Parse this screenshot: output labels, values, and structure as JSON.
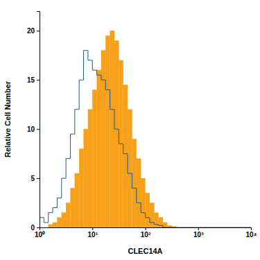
{
  "chart_data": {
    "type": "histogram",
    "x_label": "CLEC14A",
    "y_label": "Relative Cell Number",
    "log": "x",
    "bins": [
      1,
      1.212,
      1.468,
      1.778,
      2.154,
      2.61,
      3.162,
      3.831,
      4.642,
      5.623,
      6.813,
      8.254,
      10,
      12.12,
      14.68,
      17.78,
      21.54,
      26.1,
      31.62,
      38.31,
      46.42,
      56.23,
      68.13,
      82.54,
      100,
      121.2,
      146.8,
      177.8,
      215.4,
      261,
      316.2,
      383.1,
      464.2,
      562.3,
      681.3,
      825.4,
      1000,
      1212,
      1468,
      1778,
      2154,
      2610,
      3162,
      3831,
      4642,
      5623,
      6813,
      8254,
      10000
    ],
    "series": [
      {
        "type": "bar",
        "color": "#f7a11a",
        "values": [
          0,
          0,
          0.3,
          0.5,
          1,
          1.5,
          2.5,
          4,
          5.5,
          8,
          10,
          12,
          14,
          16,
          18,
          19.5,
          20,
          19,
          17,
          14.5,
          12,
          9,
          7,
          5,
          3.5,
          2.5,
          1.5,
          1,
          0.5,
          0.2,
          0.1,
          0,
          0,
          0,
          0,
          0,
          0,
          0,
          0,
          0,
          0,
          0,
          0,
          0,
          0,
          0,
          0,
          0
        ]
      },
      {
        "type": "step",
        "color": "#1d5a85",
        "values": [
          1,
          0.5,
          1.5,
          2,
          3,
          5,
          7,
          9.5,
          12,
          15,
          18,
          17,
          16,
          15.5,
          15,
          14,
          12,
          10,
          8.5,
          7.5,
          5.5,
          4,
          2.5,
          1.5,
          1,
          0.5,
          0.3,
          0.2,
          0,
          0,
          0,
          0,
          0,
          0,
          0,
          0,
          0,
          0,
          0,
          0,
          0,
          0,
          0,
          0,
          0,
          0,
          0,
          0
        ]
      }
    ],
    "xlim": [
      1,
      10000
    ],
    "xticks": [
      {
        "value": 1,
        "label": "10⁰"
      },
      {
        "value": 10,
        "label": "10¹"
      },
      {
        "value": 100,
        "label": "10²"
      },
      {
        "value": 1000,
        "label": "10³"
      },
      {
        "value": 10000,
        "label": "10⁴"
      }
    ],
    "ylim": [
      0,
      22
    ],
    "yticks": [
      0,
      5,
      10,
      15,
      20
    ]
  }
}
